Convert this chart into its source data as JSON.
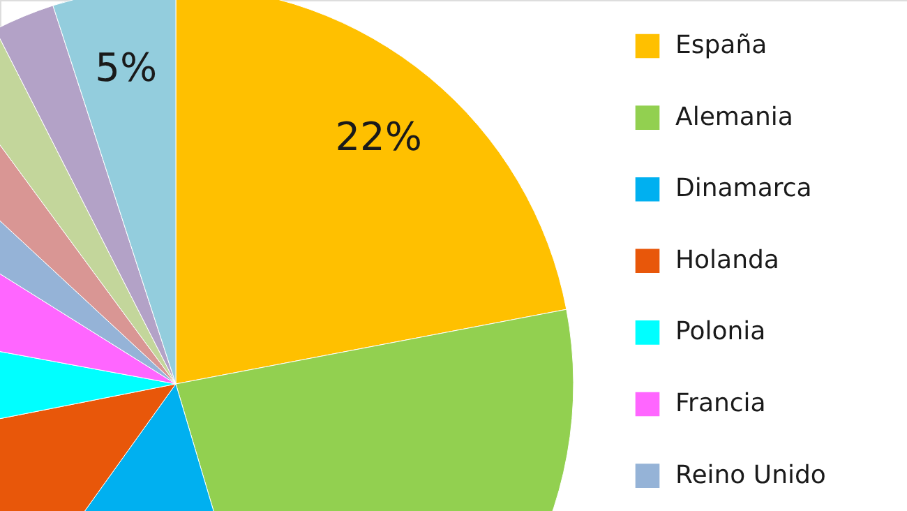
{
  "chart_data": {
    "type": "pie",
    "categories": [
      "España",
      "Alemania",
      "Dinamarca",
      "Holanda",
      "Polonia",
      "Francia",
      "Reino Unido",
      null,
      null,
      null,
      null
    ],
    "values": [
      22,
      23.4,
      14.5,
      12,
      6,
      6,
      3,
      3,
      2.6,
      2.5,
      5
    ],
    "colors": [
      "#ffc000",
      "#92d050",
      "#00b0f0",
      "#e8570a",
      "#00ffff",
      "#ff66ff",
      "#95b3d7",
      "#d99694",
      "#c3d69b",
      "#b3a2c7",
      "#93cddd"
    ],
    "value_labels": [
      "22%",
      null,
      null,
      null,
      null,
      null,
      null,
      null,
      null,
      null,
      "5%"
    ],
    "legend": "right"
  }
}
